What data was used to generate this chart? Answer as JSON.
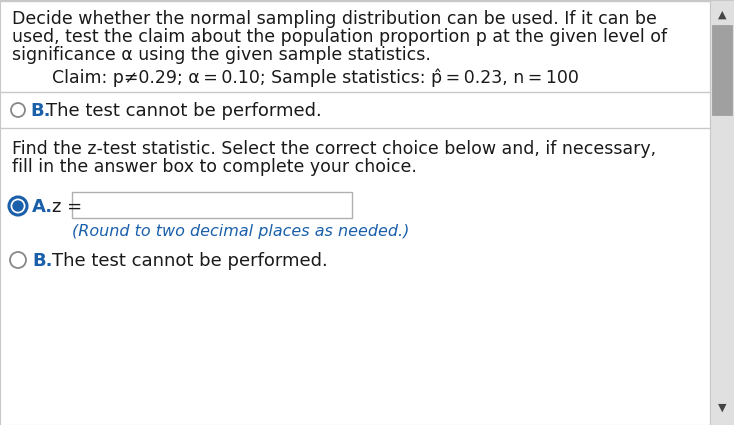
{
  "bg_color": "#f0f0f0",
  "content_bg": "#ffffff",
  "border_color": "#c8c8c8",
  "text_color": "#1a1a1a",
  "blue_color": "#1a5faa",
  "gray_color": "#888888",
  "line1": "Decide whether the normal sampling distribution can be used. If it can be",
  "line2": "used, test the claim about the population proportion p at the given level of",
  "line3": "significance α using the given sample statistics.",
  "claim_line": "Claim: p≠0.29; α = 0.10; Sample statistics: p̂ = 0.23, n = 100",
  "section1_b_text": "The test cannot be performed.",
  "section2_intro1": "Find the z-test statistic. Select the correct choice below and, if necessary,",
  "section2_intro2": "fill in the answer box to complete your choice.",
  "option_a_z": "z =",
  "option_a_hint": "(Round to two decimal places as needed.)",
  "option_b_text": "The test cannot be performed.",
  "scrollbar_thumb_color": "#a0a0a0",
  "scrollbar_bg_color": "#e0e0e0",
  "font_size_main": 12.5,
  "font_size_claim": 12.5,
  "font_size_options": 13.0,
  "font_size_hint": 11.5
}
